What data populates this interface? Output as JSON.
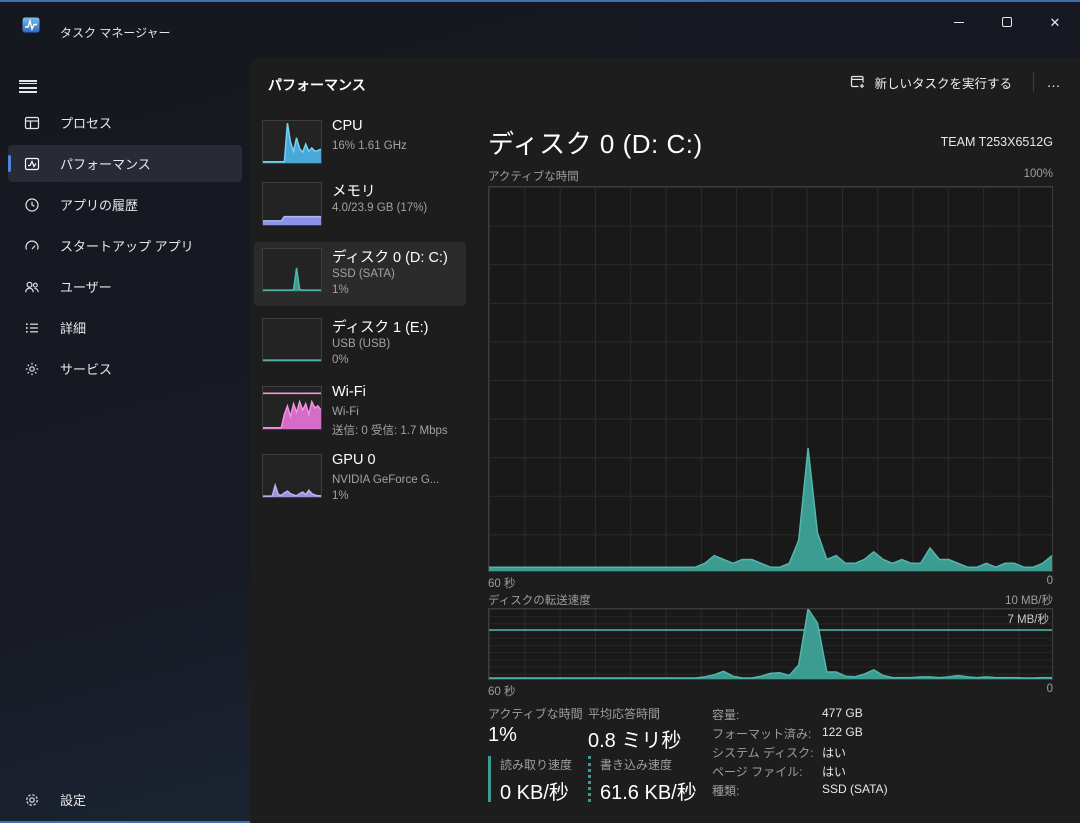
{
  "window": {
    "title": "タスク マネージャー"
  },
  "sidebar": {
    "items": [
      {
        "label": "プロセス"
      },
      {
        "label": "パフォーマンス",
        "selected": true
      },
      {
        "label": "アプリの履歴"
      },
      {
        "label": "スタートアップ アプリ"
      },
      {
        "label": "ユーザー"
      },
      {
        "label": "詳細"
      },
      {
        "label": "サービス"
      }
    ],
    "settings_label": "設定"
  },
  "header": {
    "title": "パフォーマンス",
    "run_new_task": "新しいタスクを実行する",
    "more": "…"
  },
  "perf_list": [
    {
      "title": "CPU",
      "sub1": "16% 1.61 GHz"
    },
    {
      "title": "メモリ",
      "sub1": "4.0/23.9 GB (17%)"
    },
    {
      "title": "ディスク 0 (D: C:)",
      "sub1": "SSD (SATA)",
      "sub2": "1%",
      "selected": true
    },
    {
      "title": "ディスク 1 (E:)",
      "sub1": "USB (USB)",
      "sub2": "0%"
    },
    {
      "title": "Wi-Fi",
      "sub1": "Wi-Fi",
      "sub2": "送信: 0 受信: 1.7 Mbps"
    },
    {
      "title": "GPU 0",
      "sub1": "NVIDIA GeForce G...",
      "sub2": "1%"
    }
  ],
  "main": {
    "title": "ディスク 0 (D: C:)",
    "device": "TEAM T253X6512G",
    "chart1_label": "アクティブな時間",
    "chart1_max": "100%",
    "chart1_x_left": "60 秒",
    "chart1_x_right": "0",
    "chart2_label": "ディスクの転送速度",
    "chart2_max": "10 MB/秒",
    "chart2_hline_label": "7 MB/秒",
    "chart2_x_left": "60 秒",
    "chart2_x_right": "0",
    "stats": {
      "active_time_label": "アクティブな時間",
      "active_time_value": "1%",
      "avg_response_label": "平均応答時間",
      "avg_response_value": "0.8 ミリ秒",
      "read_label": "読み取り速度",
      "read_value": "0 KB/秒",
      "write_label": "書き込み速度",
      "write_value": "61.6 KB/秒",
      "details": [
        {
          "label": "容量:",
          "value": "477 GB"
        },
        {
          "label": "フォーマット済み:",
          "value": "122 GB"
        },
        {
          "label": "システム ディスク:",
          "value": "はい"
        },
        {
          "label": "ページ ファイル:",
          "value": "はい"
        },
        {
          "label": "種類:",
          "value": "SSD (SATA)"
        }
      ]
    }
  },
  "colors": {
    "accent": "#4f86d4",
    "disk_teal": "#3d9c92",
    "cpu_blue": "#4aa8d8",
    "memory_purple": "#8a93e8",
    "wifi_pink": "#d66cc5",
    "gpu_purple": "#9f8fe0"
  },
  "chart_data": [
    {
      "type": "area",
      "name": "disk0-active-time",
      "title": "アクティブな時間",
      "ylabel": "%",
      "ylim": [
        0,
        100
      ],
      "x_range_seconds": 60,
      "x_left_label": "60 秒",
      "x_right_label": "0",
      "ymax_label": "100%",
      "grid": true,
      "fill": "#3d9c92",
      "stroke": "#52b7ab",
      "values": [
        1,
        1,
        1,
        1,
        1,
        1,
        1,
        1,
        1,
        1,
        1,
        1,
        1,
        1,
        1,
        1,
        1,
        1,
        1,
        1,
        1,
        1,
        1,
        2,
        4,
        3,
        2,
        3,
        3,
        2,
        1,
        1,
        2,
        8,
        32,
        10,
        3,
        4,
        2,
        2,
        3,
        5,
        3,
        2,
        3,
        2,
        2,
        6,
        3,
        3,
        2,
        1,
        1,
        2,
        1,
        2,
        2,
        1,
        1,
        2,
        4
      ]
    },
    {
      "type": "area",
      "name": "disk0-transfer-rate",
      "title": "ディスクの転送速度",
      "ylabel": "MB/秒",
      "ylim": [
        0,
        10
      ],
      "x_range_seconds": 60,
      "x_left_label": "60 秒",
      "x_right_label": "0",
      "ymax_label": "10 MB/秒",
      "hline_value": 7,
      "hline_label": "7 MB/秒",
      "grid": true,
      "fill": "#3d9c92",
      "stroke": "#52b7ab",
      "values": [
        0.15,
        0.15,
        0.15,
        0.15,
        0.15,
        0.15,
        0.15,
        0.15,
        0.15,
        0.15,
        0.15,
        0.15,
        0.15,
        0.15,
        0.15,
        0.15,
        0.15,
        0.15,
        0.15,
        0.15,
        0.15,
        0.15,
        0.15,
        0.3,
        0.6,
        1.1,
        0.4,
        0.15,
        0.15,
        0.4,
        0.8,
        0.9,
        0.5,
        2,
        10,
        8,
        1,
        1.0,
        0.4,
        0.3,
        0.7,
        1.3,
        0.5,
        0.2,
        0.2,
        0.2,
        0.3,
        0.3,
        0.2,
        0.3,
        0.5,
        0.3,
        0.2,
        0.3,
        0.2,
        0.2,
        0.2,
        0.15,
        0.15,
        0.2,
        0.2
      ]
    },
    {
      "type": "sparkline",
      "name": "cpu-spark",
      "ylim": [
        0,
        100
      ],
      "fill": "#4aa8d8",
      "stroke": "#79d2f2",
      "values": [
        3,
        3,
        3,
        3,
        3,
        3,
        3,
        3,
        95,
        50,
        28,
        60,
        34,
        26,
        45,
        28,
        36,
        28,
        30,
        33
      ]
    },
    {
      "type": "sparkline",
      "name": "memory-spark",
      "ylim": [
        0,
        100
      ],
      "fill": "#8a93e8",
      "stroke": "#b0b8f8",
      "values": [
        10,
        10,
        10,
        10,
        10,
        10,
        10,
        20,
        20,
        20,
        20,
        20,
        20,
        20,
        20,
        20,
        20,
        20,
        20,
        20
      ]
    },
    {
      "type": "sparkline",
      "name": "disk0-spark",
      "ylim": [
        0,
        100
      ],
      "fill": "#3d9c92",
      "stroke": "#52b7ab",
      "values": [
        2,
        2,
        2,
        2,
        2,
        2,
        2,
        2,
        2,
        2,
        3,
        55,
        4,
        2,
        2,
        2,
        2,
        2,
        2,
        2
      ]
    },
    {
      "type": "sparkline",
      "name": "disk1-spark",
      "ylim": [
        0,
        100
      ],
      "fill": "#3d9c92",
      "stroke": "#52b7ab",
      "values": [
        2,
        2,
        2,
        2,
        2,
        2,
        2,
        2,
        2,
        2,
        2,
        2,
        2,
        2,
        2,
        2,
        2,
        2,
        2,
        2
      ]
    },
    {
      "type": "sparkline",
      "name": "wifi-spark",
      "ylim": [
        0,
        100
      ],
      "fill": "#d66cc5",
      "stroke": "#ef95e2",
      "hline_value": 85,
      "values": [
        3,
        3,
        3,
        3,
        3,
        3,
        3,
        35,
        55,
        30,
        60,
        40,
        65,
        45,
        60,
        35,
        65,
        50,
        55,
        45
      ]
    },
    {
      "type": "sparkline",
      "name": "gpu-spark",
      "ylim": [
        0,
        100
      ],
      "fill": "#9f8fe0",
      "stroke": "#bfb2f2",
      "values": [
        2,
        2,
        2,
        2,
        28,
        6,
        4,
        10,
        14,
        8,
        5,
        3,
        8,
        12,
        6,
        16,
        8,
        5,
        3,
        3
      ]
    }
  ]
}
